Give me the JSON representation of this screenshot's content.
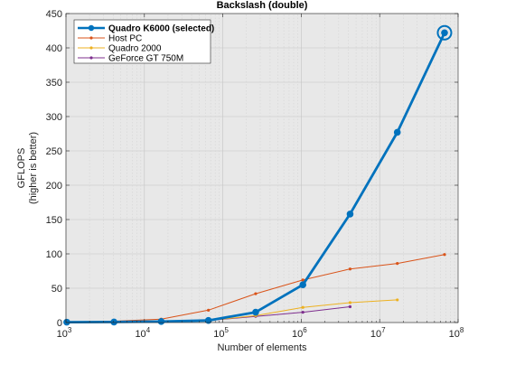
{
  "chart_data": {
    "type": "line",
    "title": "Backslash (double)",
    "xlabel": "Number of elements",
    "ylabel_lines": [
      "GFLOPS",
      "(higher is better)"
    ],
    "xscale": "log",
    "xlim": [
      1000,
      100000000
    ],
    "ylim": [
      0,
      450
    ],
    "yticks": [
      0,
      50,
      100,
      150,
      200,
      250,
      300,
      350,
      400,
      450
    ],
    "xticks": [
      {
        "value": 1000,
        "base": "10",
        "exp": "3"
      },
      {
        "value": 10000,
        "base": "10",
        "exp": "4"
      },
      {
        "value": 100000,
        "base": "10",
        "exp": "5"
      },
      {
        "value": 1000000,
        "base": "10",
        "exp": "6"
      },
      {
        "value": 10000000,
        "base": "10",
        "exp": "7"
      },
      {
        "value": 100000000,
        "base": "10",
        "exp": "8"
      }
    ],
    "grid": true,
    "legend_position": "top-left",
    "series": [
      {
        "name": "Quadro K6000 (selected)",
        "color": "#0072BD",
        "bold": true,
        "x": [
          1024,
          4096,
          16384,
          65536,
          262144,
          1048576,
          4194304,
          16777216,
          67108864
        ],
        "y": [
          0.5,
          0.8,
          1.5,
          3,
          15,
          55,
          158,
          277,
          422
        ]
      },
      {
        "name": "Host PC",
        "color": "#D95319",
        "bold": false,
        "x": [
          1024,
          4096,
          16384,
          65536,
          262144,
          1048576,
          4194304,
          16777216,
          67108864
        ],
        "y": [
          1,
          2,
          5,
          18,
          42,
          62,
          78,
          86,
          99
        ]
      },
      {
        "name": "Quadro 2000",
        "color": "#EDB120",
        "bold": false,
        "x": [
          1024,
          4096,
          16384,
          65536,
          262144,
          1048576,
          4194304,
          16777216
        ],
        "y": [
          0.5,
          0.8,
          1.5,
          3,
          10,
          22,
          29,
          33
        ]
      },
      {
        "name": "GeForce GT 750M",
        "color": "#7E2F8E",
        "bold": false,
        "x": [
          1024,
          4096,
          16384,
          65536,
          262144,
          1048576,
          4194304
        ],
        "y": [
          0.5,
          0.8,
          1.5,
          3,
          9,
          15,
          23
        ]
      }
    ]
  }
}
